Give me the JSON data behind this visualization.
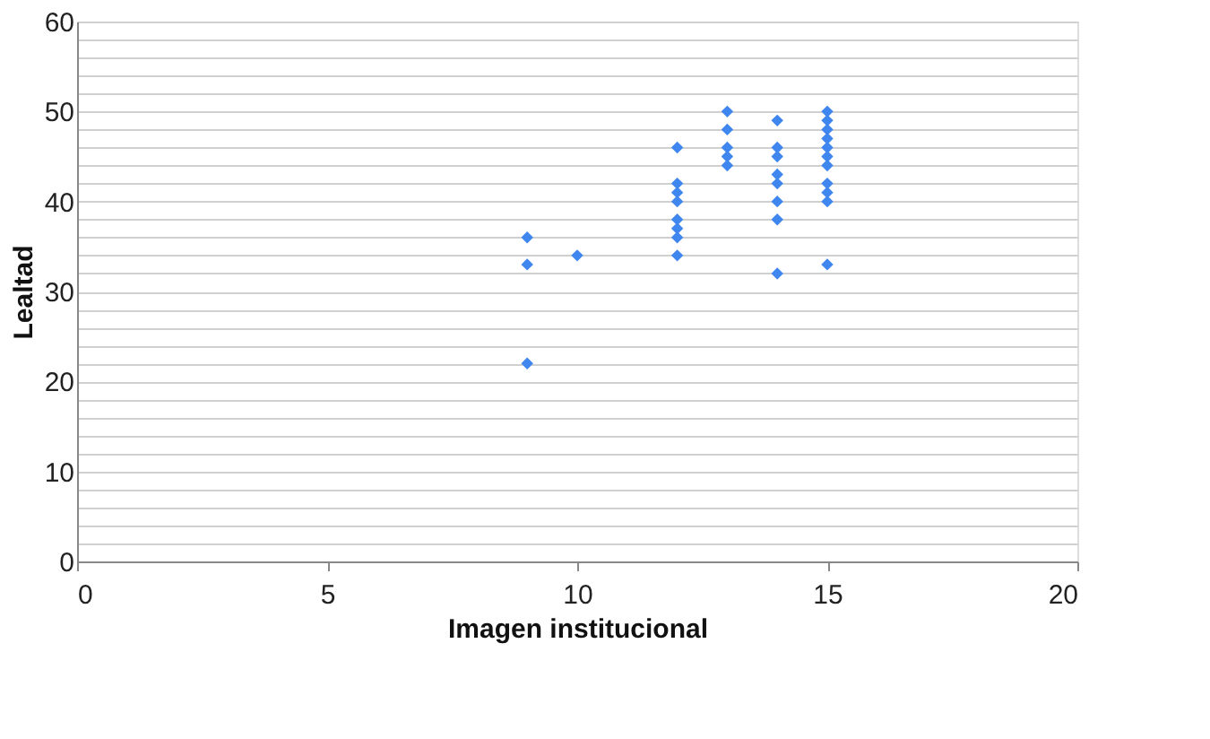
{
  "chart_data": {
    "type": "scatter",
    "xlabel": "Imagen institucional",
    "ylabel": "Lealtad",
    "x": [
      9,
      9,
      9,
      10,
      12,
      12,
      12,
      12,
      12,
      12,
      12,
      12,
      13,
      13,
      13,
      13,
      13,
      14,
      14,
      14,
      14,
      14,
      14,
      14,
      14,
      15,
      15,
      15,
      15,
      15,
      15,
      15,
      15,
      15,
      15,
      15
    ],
    "series": [
      {
        "color": "#3f86ef",
        "values": [
          36,
          33,
          22,
          34,
          46,
          42,
          41,
          40,
          38,
          37,
          36,
          34,
          50,
          48,
          46,
          45,
          44,
          49,
          46,
          45,
          43,
          42,
          40,
          38,
          32,
          50,
          49,
          48,
          47,
          46,
          45,
          44,
          42,
          41,
          40,
          33
        ]
      }
    ],
    "xlim": [
      0,
      20
    ],
    "xticks": [
      0,
      5,
      10,
      15,
      20
    ],
    "ylim": [
      0,
      60
    ],
    "yticks": [
      0,
      {
        "value": 2,
        "label": null
      },
      {
        "value": 4,
        "label": null
      },
      {
        "value": 6,
        "label": null
      },
      {
        "value": 8,
        "label": null
      },
      10,
      {
        "value": 12,
        "label": null
      },
      {
        "value": 14,
        "label": null
      },
      {
        "value": 16,
        "label": null
      },
      {
        "value": 18,
        "label": null
      },
      20,
      {
        "value": 22,
        "label": null
      },
      {
        "value": 24,
        "label": null
      },
      {
        "value": 26,
        "label": null
      },
      {
        "value": 28,
        "label": null
      },
      30,
      {
        "value": 32,
        "label": null
      },
      {
        "value": 34,
        "label": null
      },
      {
        "value": 36,
        "label": null
      },
      {
        "value": 38,
        "label": null
      },
      40,
      {
        "value": 42,
        "label": null
      },
      {
        "value": 44,
        "label": null
      },
      {
        "value": 46,
        "label": null
      },
      {
        "value": 48,
        "label": null
      },
      50,
      {
        "value": 52,
        "label": null
      },
      {
        "value": 54,
        "label": null
      },
      {
        "value": 56,
        "label": null
      },
      {
        "value": 58,
        "label": null
      },
      60
    ],
    "grid": "y",
    "marker": "diamond",
    "legend": false
  }
}
